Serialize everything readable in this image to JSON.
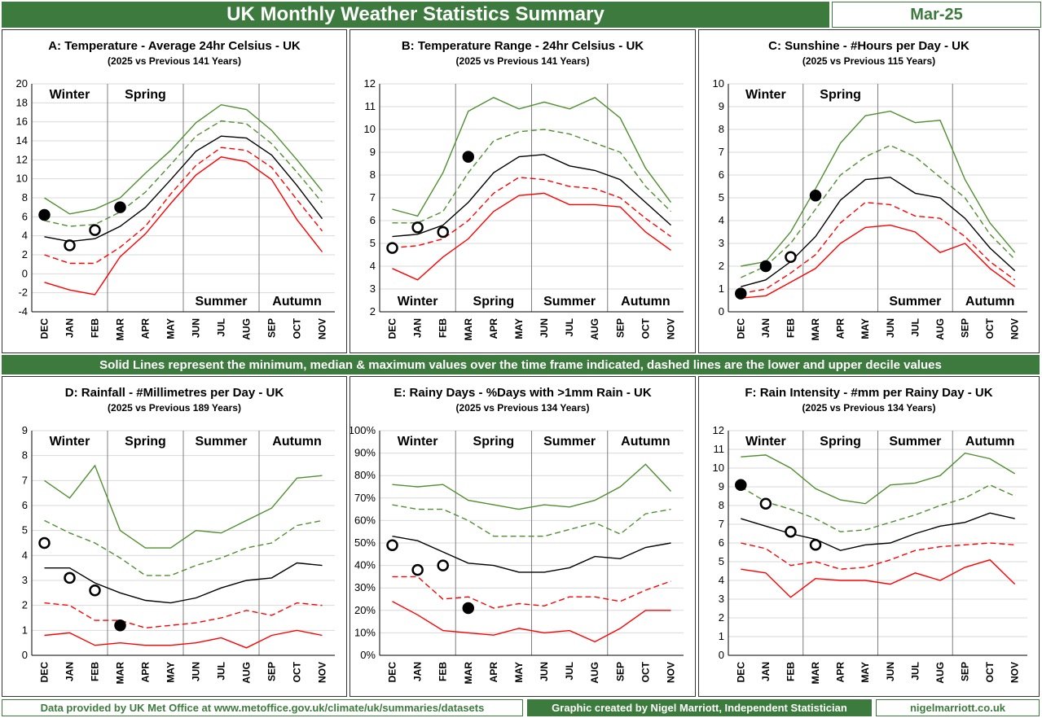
{
  "header": {
    "title": "UK Monthly Weather Statistics Summary",
    "date": "Mar-25"
  },
  "mid_banner": "Solid Lines represent the minimum, median & maximum values over the time frame indicated, dashed lines are the lower and upper decile values",
  "footer": {
    "left": "Data provided by UK Met Office at www.metoffice.gov.uk/climate/uk/summaries/datasets",
    "middle": "Graphic created by Nigel Marriott, Independent Statistician",
    "right": "nigelmarriott.co.uk"
  },
  "colors": {
    "banner": "#3d7a3d",
    "min_line": "#ff0000",
    "max_line": "#4f8f2f",
    "median_line": "#000000"
  },
  "chart_data": [
    {
      "id": "A",
      "type": "line",
      "title": "A: Temperature - Average 24hr Celsius - UK",
      "subtitle": "(2025 vs Previous 141 Years)",
      "categories": [
        "DEC",
        "JAN",
        "FEB",
        "MAR",
        "APR",
        "MAY",
        "JUN",
        "JUL",
        "AUG",
        "SEP",
        "OCT",
        "NOV"
      ],
      "ylim": [
        -4,
        20
      ],
      "yticks": [
        -4,
        -2,
        0,
        2,
        4,
        6,
        8,
        10,
        12,
        14,
        16,
        18,
        20
      ],
      "ytick_format": "num",
      "seasons": [
        {
          "label": "Winter",
          "pos": "top",
          "cat": 1
        },
        {
          "label": "Spring",
          "pos": "top",
          "cat": 4
        },
        {
          "label": "Summer",
          "pos": "bottom",
          "cat": 7
        },
        {
          "label": "Autumn",
          "pos": "bottom",
          "cat": 10
        }
      ],
      "series": [
        {
          "role": "max",
          "values": [
            8.0,
            6.3,
            6.8,
            8.0,
            10.6,
            13.0,
            15.9,
            17.8,
            17.3,
            15.1,
            12.0,
            8.7
          ]
        },
        {
          "role": "upper_decile",
          "values": [
            5.6,
            5.0,
            5.2,
            6.5,
            8.6,
            11.5,
            14.5,
            16.1,
            15.8,
            13.7,
            10.7,
            7.5
          ]
        },
        {
          "role": "median",
          "values": [
            3.9,
            3.4,
            3.7,
            5.0,
            7.0,
            9.9,
            12.9,
            14.5,
            14.3,
            12.5,
            9.3,
            5.8
          ]
        },
        {
          "role": "lower_decile",
          "values": [
            2.0,
            1.1,
            1.1,
            2.8,
            5.0,
            8.4,
            11.4,
            13.3,
            13.0,
            11.2,
            7.8,
            4.5
          ]
        },
        {
          "role": "min",
          "values": [
            -0.9,
            -1.7,
            -2.2,
            1.8,
            4.2,
            7.4,
            10.4,
            12.3,
            11.8,
            9.9,
            5.7,
            2.3
          ]
        }
      ],
      "points": [
        {
          "cat": 0,
          "value": 6.2,
          "filled": true
        },
        {
          "cat": 1,
          "value": 3.0,
          "filled": false
        },
        {
          "cat": 2,
          "value": 4.6,
          "filled": false
        },
        {
          "cat": 3,
          "value": 7.0,
          "filled": true
        }
      ]
    },
    {
      "id": "B",
      "type": "line",
      "title": "B: Temperature Range - 24hr Celsius - UK",
      "subtitle": "(2025 vs Previous 141 Years)",
      "categories": [
        "DEC",
        "JAN",
        "FEB",
        "MAR",
        "APR",
        "MAY",
        "JUN",
        "JUL",
        "AUG",
        "SEP",
        "OCT",
        "NOV"
      ],
      "ylim": [
        2,
        12
      ],
      "yticks": [
        2,
        3,
        4,
        5,
        6,
        7,
        8,
        9,
        10,
        11,
        12
      ],
      "ytick_format": "num",
      "seasons": [
        {
          "label": "Winter",
          "pos": "bottom",
          "cat": 1
        },
        {
          "label": "Spring",
          "pos": "bottom",
          "cat": 4
        },
        {
          "label": "Summer",
          "pos": "bottom",
          "cat": 7
        },
        {
          "label": "Autumn",
          "pos": "bottom",
          "cat": 10
        }
      ],
      "series": [
        {
          "role": "max",
          "values": [
            6.5,
            6.2,
            8.1,
            10.8,
            11.4,
            10.9,
            11.2,
            10.9,
            11.4,
            10.5,
            8.3,
            6.8
          ]
        },
        {
          "role": "upper_decile",
          "values": [
            5.9,
            5.9,
            6.4,
            8.1,
            9.5,
            9.9,
            10.0,
            9.8,
            9.4,
            9.0,
            7.5,
            6.4
          ]
        },
        {
          "role": "median",
          "values": [
            5.3,
            5.4,
            5.8,
            6.8,
            8.1,
            8.8,
            8.9,
            8.4,
            8.2,
            7.8,
            6.8,
            5.8
          ]
        },
        {
          "role": "lower_decile",
          "values": [
            4.8,
            4.9,
            5.2,
            6.0,
            7.2,
            7.9,
            7.8,
            7.5,
            7.4,
            7.0,
            6.1,
            5.3
          ]
        },
        {
          "role": "min",
          "values": [
            3.9,
            3.4,
            4.4,
            5.2,
            6.4,
            7.1,
            7.2,
            6.7,
            6.7,
            6.6,
            5.5,
            4.7
          ]
        }
      ],
      "points": [
        {
          "cat": 0,
          "value": 4.8,
          "filled": false
        },
        {
          "cat": 1,
          "value": 5.7,
          "filled": false
        },
        {
          "cat": 2,
          "value": 5.5,
          "filled": false
        },
        {
          "cat": 3,
          "value": 8.8,
          "filled": true
        }
      ]
    },
    {
      "id": "C",
      "type": "line",
      "title": "C: Sunshine - #Hours per Day - UK",
      "subtitle": "(2025 vs Previous 115 Years)",
      "categories": [
        "DEC",
        "JAN",
        "FEB",
        "MAR",
        "APR",
        "MAY",
        "JUN",
        "JUL",
        "AUG",
        "SEP",
        "OCT",
        "NOV"
      ],
      "ylim": [
        0,
        10
      ],
      "yticks": [
        0,
        1,
        2,
        3,
        4,
        5,
        6,
        7,
        8,
        9,
        10
      ],
      "ytick_format": "num",
      "seasons": [
        {
          "label": "Winter",
          "pos": "top",
          "cat": 1
        },
        {
          "label": "Spring",
          "pos": "top",
          "cat": 4
        },
        {
          "label": "Summer",
          "pos": "bottom",
          "cat": 7
        },
        {
          "label": "Autumn",
          "pos": "bottom",
          "cat": 10
        }
      ],
      "series": [
        {
          "role": "max",
          "values": [
            2.0,
            2.2,
            3.5,
            5.4,
            7.4,
            8.6,
            8.8,
            8.3,
            8.4,
            5.8,
            3.9,
            2.6
          ]
        },
        {
          "role": "upper_decile",
          "values": [
            1.5,
            2.0,
            3.0,
            4.5,
            6.0,
            6.8,
            7.3,
            6.8,
            5.9,
            5.0,
            3.4,
            2.3
          ]
        },
        {
          "role": "median",
          "values": [
            1.1,
            1.4,
            2.2,
            3.3,
            4.9,
            5.8,
            5.9,
            5.2,
            5.0,
            4.1,
            2.8,
            1.8
          ]
        },
        {
          "role": "lower_decile",
          "values": [
            0.8,
            1.0,
            1.7,
            2.5,
            3.9,
            4.8,
            4.7,
            4.2,
            4.1,
            3.3,
            2.2,
            1.4
          ]
        },
        {
          "role": "min",
          "values": [
            0.6,
            0.7,
            1.3,
            1.9,
            3.0,
            3.7,
            3.8,
            3.5,
            2.6,
            3.0,
            1.9,
            1.1
          ]
        }
      ],
      "points": [
        {
          "cat": 0,
          "value": 0.8,
          "filled": true
        },
        {
          "cat": 1,
          "value": 2.0,
          "filled": true
        },
        {
          "cat": 2,
          "value": 2.4,
          "filled": false
        },
        {
          "cat": 3,
          "value": 5.1,
          "filled": true
        }
      ]
    },
    {
      "id": "D",
      "type": "line",
      "title": "D: Rainfall - #Millimetres per Day - UK",
      "subtitle": "(2025 vs Previous 189 Years)",
      "categories": [
        "DEC",
        "JAN",
        "FEB",
        "MAR",
        "APR",
        "MAY",
        "JUN",
        "JUL",
        "AUG",
        "SEP",
        "OCT",
        "NOV"
      ],
      "ylim": [
        0,
        9
      ],
      "yticks": [
        0,
        1,
        2,
        3,
        4,
        5,
        6,
        7,
        8,
        9
      ],
      "ytick_format": "num",
      "seasons": [
        {
          "label": "Winter",
          "pos": "top",
          "cat": 1
        },
        {
          "label": "Spring",
          "pos": "top",
          "cat": 4
        },
        {
          "label": "Summer",
          "pos": "top",
          "cat": 7
        },
        {
          "label": "Autumn",
          "pos": "top",
          "cat": 10
        }
      ],
      "series": [
        {
          "role": "max",
          "values": [
            7.0,
            6.3,
            7.6,
            5.0,
            4.3,
            4.3,
            5.0,
            4.9,
            5.4,
            5.9,
            7.1,
            7.2
          ]
        },
        {
          "role": "upper_decile",
          "values": [
            5.4,
            4.9,
            4.5,
            3.9,
            3.2,
            3.2,
            3.6,
            3.9,
            4.3,
            4.5,
            5.2,
            5.4
          ]
        },
        {
          "role": "median",
          "values": [
            3.5,
            3.5,
            2.9,
            2.5,
            2.2,
            2.1,
            2.3,
            2.7,
            3.0,
            3.1,
            3.7,
            3.6
          ]
        },
        {
          "role": "lower_decile",
          "values": [
            2.1,
            2.0,
            1.4,
            1.4,
            1.1,
            1.2,
            1.3,
            1.5,
            1.8,
            1.6,
            2.1,
            2.0
          ]
        },
        {
          "role": "min",
          "values": [
            0.8,
            0.9,
            0.4,
            0.5,
            0.4,
            0.4,
            0.5,
            0.7,
            0.3,
            0.8,
            1.0,
            0.8
          ]
        }
      ],
      "points": [
        {
          "cat": 0,
          "value": 4.5,
          "filled": false
        },
        {
          "cat": 1,
          "value": 3.1,
          "filled": false
        },
        {
          "cat": 2,
          "value": 2.6,
          "filled": false
        },
        {
          "cat": 3,
          "value": 1.2,
          "filled": true
        }
      ]
    },
    {
      "id": "E",
      "type": "line",
      "title": "E: Rainy Days - %Days with >1mm Rain - UK",
      "subtitle": "(2025 vs Previous 134 Years)",
      "categories": [
        "DEC",
        "JAN",
        "FEB",
        "MAR",
        "APR",
        "MAY",
        "JUN",
        "JUL",
        "AUG",
        "SEP",
        "OCT",
        "NOV"
      ],
      "ylim": [
        0,
        100
      ],
      "yticks": [
        0,
        10,
        20,
        30,
        40,
        50,
        60,
        70,
        80,
        90,
        100
      ],
      "ytick_format": "pct",
      "seasons": [
        {
          "label": "Winter",
          "pos": "top",
          "cat": 1
        },
        {
          "label": "Spring",
          "pos": "top",
          "cat": 4
        },
        {
          "label": "Summer",
          "pos": "top",
          "cat": 7
        },
        {
          "label": "Autumn",
          "pos": "top",
          "cat": 10
        }
      ],
      "series": [
        {
          "role": "max",
          "values": [
            76,
            75,
            76,
            69,
            67,
            65,
            67,
            66,
            69,
            75,
            85,
            73
          ]
        },
        {
          "role": "upper_decile",
          "values": [
            67,
            65,
            65,
            60,
            53,
            53,
            53,
            56,
            59,
            54,
            63,
            65
          ]
        },
        {
          "role": "median",
          "values": [
            53,
            51,
            46,
            41,
            40,
            37,
            37,
            39,
            44,
            43,
            48,
            50
          ]
        },
        {
          "role": "lower_decile",
          "values": [
            35,
            35,
            25,
            26,
            21,
            23,
            22,
            26,
            26,
            24,
            29,
            33
          ]
        },
        {
          "role": "min",
          "values": [
            24,
            18,
            11,
            10,
            9,
            12,
            10,
            11,
            6,
            12,
            20,
            20
          ]
        }
      ],
      "points": [
        {
          "cat": 0,
          "value": 49,
          "filled": false
        },
        {
          "cat": 1,
          "value": 38,
          "filled": false
        },
        {
          "cat": 2,
          "value": 40,
          "filled": false
        },
        {
          "cat": 3,
          "value": 21,
          "filled": true
        }
      ]
    },
    {
      "id": "F",
      "type": "line",
      "title": "F: Rain Intensity - #mm per Rainy Day - UK",
      "subtitle": "(2025 vs Previous 134 Years)",
      "categories": [
        "DEC",
        "JAN",
        "FEB",
        "MAR",
        "APR",
        "MAY",
        "JUN",
        "JUL",
        "AUG",
        "SEP",
        "OCT",
        "NOV"
      ],
      "ylim": [
        0,
        12
      ],
      "yticks": [
        0,
        1,
        2,
        3,
        4,
        5,
        6,
        7,
        8,
        9,
        10,
        11,
        12
      ],
      "ytick_format": "num",
      "seasons": [
        {
          "label": "Winter",
          "pos": "top",
          "cat": 1
        },
        {
          "label": "Spring",
          "pos": "top",
          "cat": 4
        },
        {
          "label": "Summer",
          "pos": "top",
          "cat": 7
        },
        {
          "label": "Autumn",
          "pos": "top",
          "cat": 10
        }
      ],
      "series": [
        {
          "role": "max",
          "values": [
            10.6,
            10.7,
            10.0,
            8.9,
            8.3,
            8.1,
            9.1,
            9.2,
            9.6,
            10.8,
            10.5,
            9.7
          ]
        },
        {
          "role": "upper_decile",
          "values": [
            9.0,
            8.2,
            7.8,
            7.3,
            6.6,
            6.7,
            7.1,
            7.5,
            8.0,
            8.4,
            9.1,
            8.5
          ]
        },
        {
          "role": "median",
          "values": [
            7.3,
            6.9,
            6.5,
            6.2,
            5.6,
            5.9,
            6.0,
            6.5,
            6.9,
            7.1,
            7.6,
            7.3
          ]
        },
        {
          "role": "lower_decile",
          "values": [
            6.0,
            5.7,
            4.8,
            5.0,
            4.6,
            4.7,
            5.1,
            5.6,
            5.8,
            5.9,
            6.0,
            5.9
          ]
        },
        {
          "role": "min",
          "values": [
            4.6,
            4.4,
            3.1,
            4.1,
            4.0,
            4.0,
            3.8,
            4.4,
            4.0,
            4.7,
            5.1,
            3.8
          ]
        }
      ],
      "points": [
        {
          "cat": 0,
          "value": 9.1,
          "filled": true
        },
        {
          "cat": 1,
          "value": 8.1,
          "filled": false
        },
        {
          "cat": 2,
          "value": 6.6,
          "filled": false
        },
        {
          "cat": 3,
          "value": 5.9,
          "filled": false
        }
      ]
    }
  ]
}
